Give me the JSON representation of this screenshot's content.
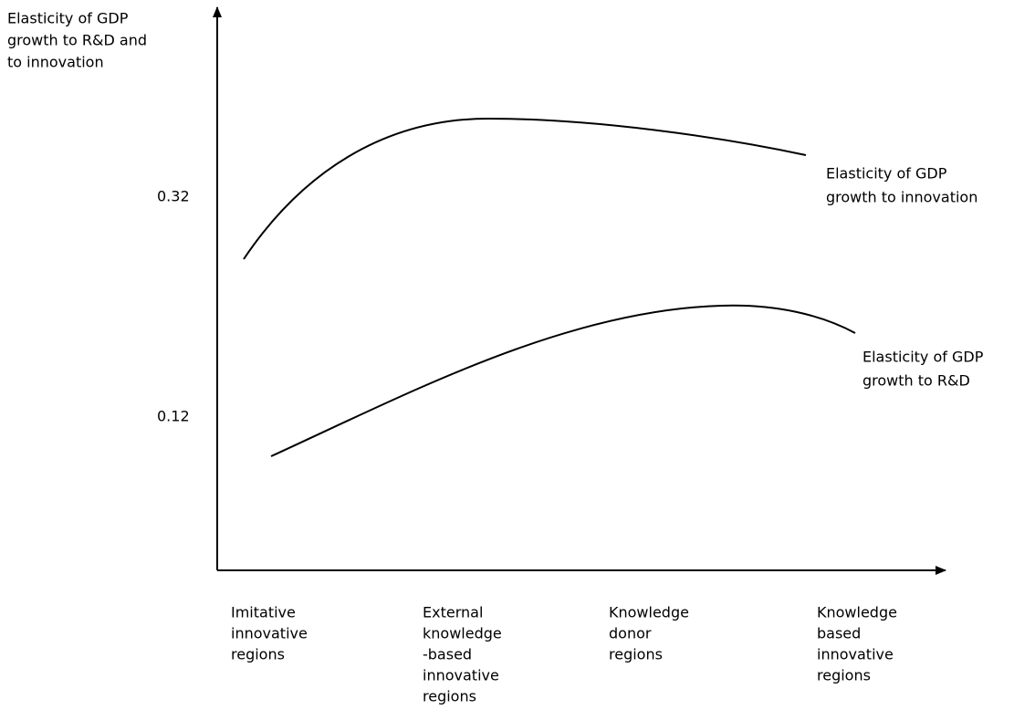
{
  "y_axis": {
    "label": [
      "Elasticity of GDP",
      "growth to R&D and",
      "to innovation"
    ],
    "ticks": [
      "0.32",
      "0.12"
    ]
  },
  "curves": [
    {
      "label": [
        "Elasticity of GDP",
        "growth to innovation"
      ]
    },
    {
      "label": [
        "Elasticity of GDP",
        "growth to R&D"
      ]
    }
  ],
  "categories": [
    [
      "Imitative",
      "innovative",
      "regions"
    ],
    [
      "External",
      "knowledge",
      "-based",
      "innovative",
      "regions"
    ],
    [
      "Knowledge",
      "donor",
      "regions"
    ],
    [
      "Knowledge",
      "based",
      "innovative",
      "regions"
    ]
  ]
}
